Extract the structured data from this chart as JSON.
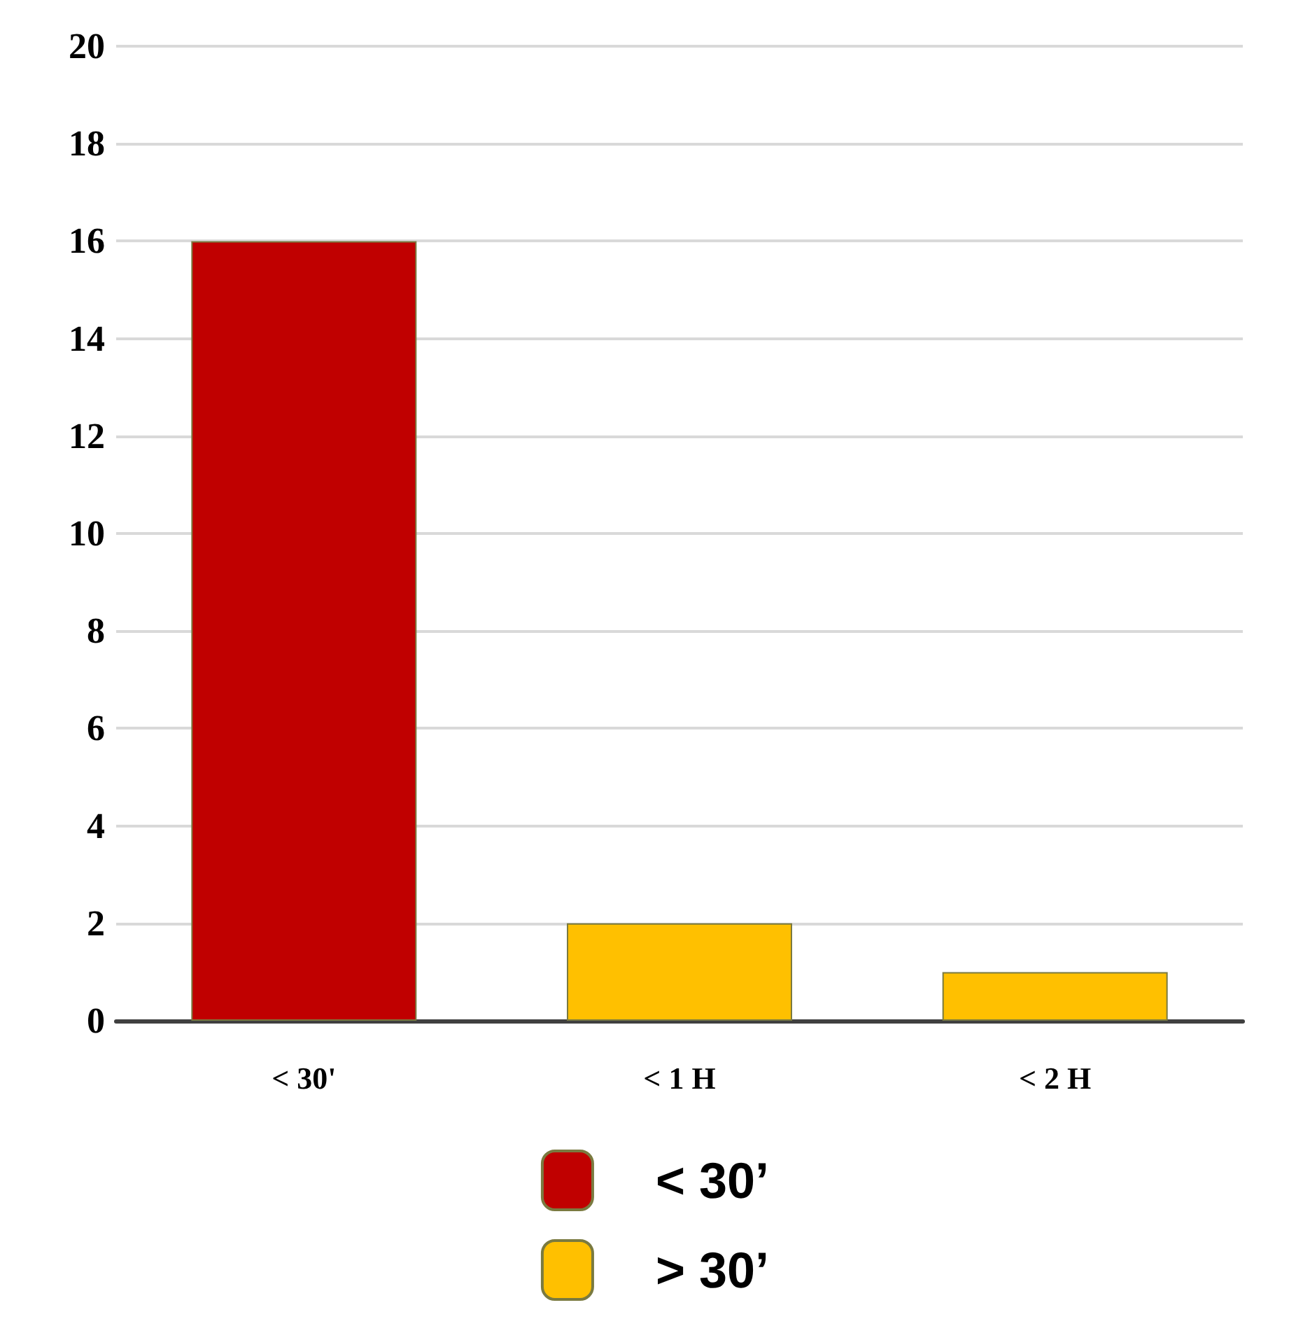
{
  "chart_data": {
    "type": "bar",
    "categories": [
      "< 30'",
      "< 1 H",
      "< 2 H"
    ],
    "series": [
      {
        "name": "< 30’",
        "color": "#c00000",
        "values": [
          16,
          null,
          null
        ]
      },
      {
        "name": "> 30’",
        "color": "#ffc000",
        "values": [
          null,
          2,
          1
        ]
      }
    ],
    "stacked": true,
    "ylim": [
      0,
      20
    ],
    "yticks": [
      0,
      2,
      4,
      6,
      8,
      10,
      12,
      14,
      16,
      18,
      20
    ],
    "grid": "y",
    "legend": "bottom"
  }
}
